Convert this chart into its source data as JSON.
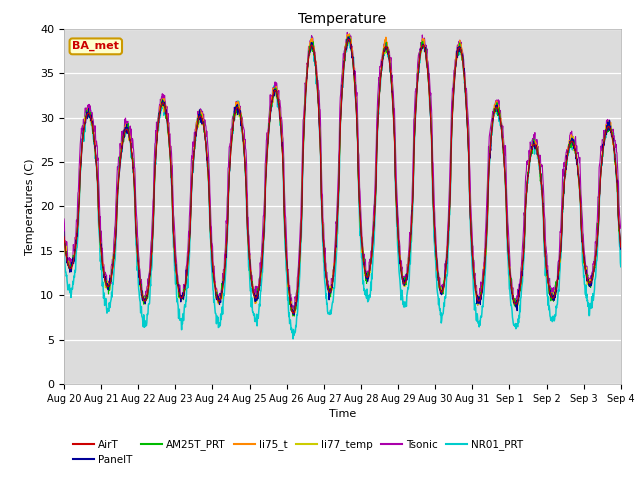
{
  "title": "Temperature",
  "xlabel": "Time",
  "ylabel": "Temperatures (C)",
  "ylim": [
    0,
    40
  ],
  "n_days": 15,
  "pts_per_day": 96,
  "bg_color": "#dcdcdc",
  "fig_bg": "#ffffff",
  "series_colors": {
    "AirT": "#cc0000",
    "PanelT": "#000099",
    "AM25T_PRT": "#00bb00",
    "li75_t": "#ff8800",
    "li77_temp": "#cccc00",
    "Tsonic": "#aa00aa",
    "NR01_PRT": "#00cccc"
  },
  "tick_labels": [
    "Aug 20",
    "Aug 21",
    "Aug 22",
    "Aug 23",
    "Aug 24",
    "Aug 25",
    "Aug 26",
    "Aug 27",
    "Aug 28",
    "Aug 29",
    "Aug 30",
    "Aug 31",
    "Sep 1",
    "Sep 2",
    "Sep 3",
    "Sep 4"
  ],
  "legend_label": "BA_met",
  "legend_box_facecolor": "#ffffcc",
  "legend_box_edgecolor": "#cc9900",
  "legend_text_color": "#cc0000",
  "peak_values": [
    31,
    28,
    32,
    30,
    31,
    32,
    38,
    39,
    38,
    38,
    39,
    32,
    27,
    27,
    29
  ],
  "min_values": [
    13,
    10,
    9,
    10,
    9,
    10,
    7,
    12,
    12,
    11,
    10,
    9,
    9,
    10,
    12
  ]
}
